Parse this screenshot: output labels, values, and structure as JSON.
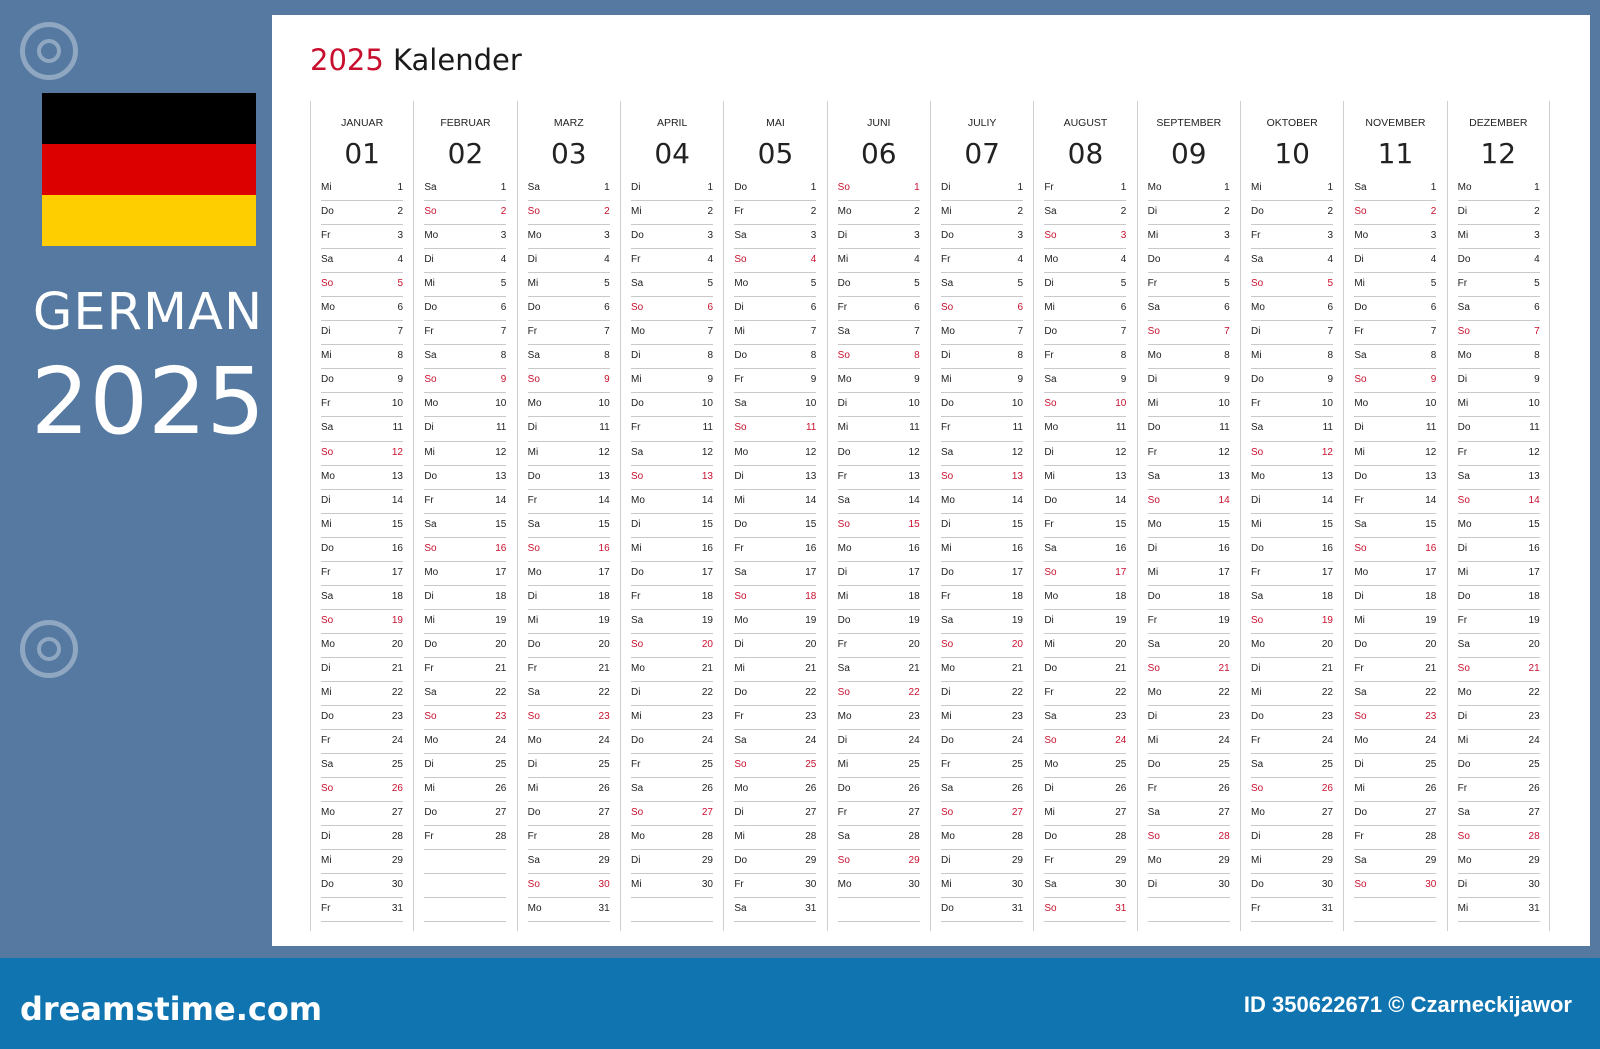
{
  "side": {
    "language": "GERMAN",
    "year": "2025"
  },
  "flag_colors": [
    "#000000",
    "#dd0000",
    "#ffce00"
  ],
  "calendar": {
    "title_year": "2025",
    "title_word": "Kalender",
    "weekday_abbr": [
      "Mo",
      "Di",
      "Mi",
      "Do",
      "Fr",
      "Sa",
      "So"
    ],
    "months": [
      {
        "name": "JANUAR",
        "num": "01",
        "days": 31,
        "start_weekday": 2
      },
      {
        "name": "FEBRUAR",
        "num": "02",
        "days": 28,
        "start_weekday": 5
      },
      {
        "name": "MARZ",
        "num": "03",
        "days": 31,
        "start_weekday": 5
      },
      {
        "name": "APRIL",
        "num": "04",
        "days": 30,
        "start_weekday": 1
      },
      {
        "name": "MAI",
        "num": "05",
        "days": 31,
        "start_weekday": 3
      },
      {
        "name": "JUNI",
        "num": "06",
        "days": 30,
        "start_weekday": 6
      },
      {
        "name": "JULIY",
        "num": "07",
        "days": 31,
        "start_weekday": 1
      },
      {
        "name": "AUGUST",
        "num": "08",
        "days": 31,
        "start_weekday": 4
      },
      {
        "name": "SEPTEMBER",
        "num": "09",
        "days": 30,
        "start_weekday": 0
      },
      {
        "name": "OKTOBER",
        "num": "10",
        "days": 31,
        "start_weekday": 2
      },
      {
        "name": "NOVEMBER",
        "num": "11",
        "days": 30,
        "start_weekday": 5
      },
      {
        "name": "DEZEMBER",
        "num": "12",
        "days": 31,
        "start_weekday": 0
      }
    ]
  },
  "footer": {
    "site": "dreamstime.com",
    "id_text": "ID 350622671 © Czarneckijawor"
  }
}
